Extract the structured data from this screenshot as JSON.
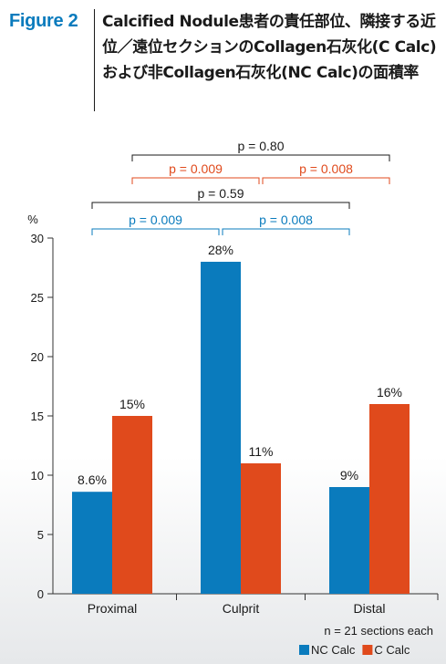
{
  "figure_label": "Figure 2",
  "figure_title": "Calcified Nodule患者の責任部位、隣接する近位／遠位セクションのCollagen石灰化(C Calc)および非Collagen石灰化(NC Calc)の面積率",
  "colors": {
    "nc_calc": "#0a7bbd",
    "c_calc": "#e04a1c",
    "axis": "#333333",
    "text": "#1a1a1a",
    "figure_label": "#0a7bbd"
  },
  "chart_data": {
    "type": "bar",
    "categories": [
      "Proximal",
      "Culprit",
      "Distal"
    ],
    "series": [
      {
        "name": "NC Calc",
        "values": [
          8.6,
          28,
          9
        ],
        "labels": [
          "8.6%",
          "28%",
          "9%"
        ],
        "color": "#0a7bbd"
      },
      {
        "name": "C Calc",
        "values": [
          15,
          11,
          16
        ],
        "labels": [
          "15%",
          "11%",
          "16%"
        ],
        "color": "#e04a1c"
      }
    ],
    "y_unit_label": "%",
    "ylim": [
      0,
      30
    ],
    "yticks": [
      0,
      5,
      10,
      15,
      20,
      25,
      30
    ],
    "grid": false,
    "legend_position": "bottom-right",
    "note": "n = 21 sections each",
    "comparisons": [
      {
        "series": "C Calc",
        "from": "Proximal",
        "to": "Distal",
        "label": "p = 0.80",
        "color": "#1a1a1a"
      },
      {
        "series": "C Calc",
        "from": "Proximal",
        "to": "Culprit",
        "label": "p = 0.009",
        "color": "#e04a1c"
      },
      {
        "series": "C Calc",
        "from": "Culprit",
        "to": "Distal",
        "label": "p = 0.008",
        "color": "#e04a1c"
      },
      {
        "series": "NC Calc",
        "from": "Proximal",
        "to": "Distal",
        "label": "p = 0.59",
        "color": "#1a1a1a"
      },
      {
        "series": "NC Calc",
        "from": "Proximal",
        "to": "Culprit",
        "label": "p = 0.009",
        "color": "#0a7bbd"
      },
      {
        "series": "NC Calc",
        "from": "Culprit",
        "to": "Distal",
        "label": "p = 0.008",
        "color": "#0a7bbd"
      }
    ]
  }
}
